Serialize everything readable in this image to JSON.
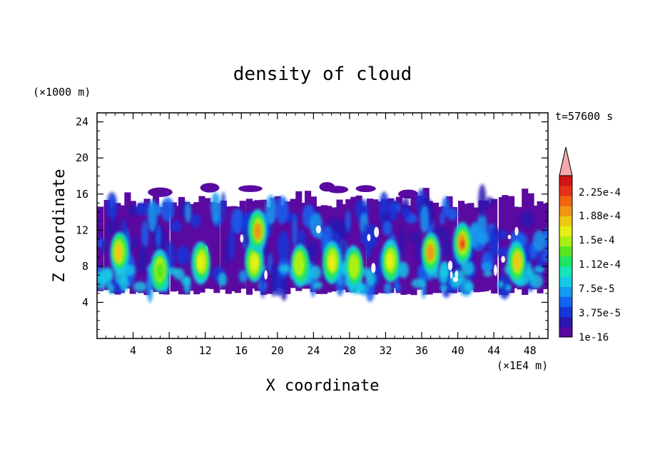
{
  "chart_data": {
    "type": "heatmap",
    "title": "density of cloud",
    "xlabel": "X coordinate",
    "ylabel": "Z coordinate",
    "x_unit": "(×1E4 m)",
    "y_unit": "(×1000 m)",
    "time_label": "t=57600 s",
    "xlim": [
      0,
      50
    ],
    "ylim": [
      0,
      25
    ],
    "x_ticks": [
      "4",
      "8",
      "12",
      "16",
      "20",
      "24",
      "28",
      "32",
      "36",
      "40",
      "44",
      "48"
    ],
    "y_ticks": [
      "4",
      "8",
      "12",
      "16",
      "20",
      "24"
    ],
    "colorbar": {
      "labels": [
        "2.25e-4",
        "1.88e-4",
        "1.5e-4",
        "1.12e-4",
        "7.5e-5",
        "3.75e-5",
        "1e-16"
      ],
      "colors": [
        "#5a0aa0",
        "#2a16b0",
        "#1436d8",
        "#1464f0",
        "#149af0",
        "#14cae6",
        "#14e6b4",
        "#1ee664",
        "#5ae61e",
        "#aaf014",
        "#e6f014",
        "#f0c814",
        "#f09614",
        "#f06414",
        "#e63214",
        "#d21414"
      ],
      "overflow_color": "#f4a8a8"
    },
    "cloud_layer": {
      "z_bottom": 4.8,
      "z_top": 16.3
    },
    "cells": [
      {
        "x": 2.4,
        "z": 9.5,
        "level": 11
      },
      {
        "x": 7.0,
        "z": 7.5,
        "level": 8
      },
      {
        "x": 11.5,
        "z": 8.5,
        "level": 10
      },
      {
        "x": 17.5,
        "z": 8.5,
        "level": 10
      },
      {
        "x": 17.8,
        "z": 12.0,
        "level": 12
      },
      {
        "x": 22.5,
        "z": 8.2,
        "level": 9
      },
      {
        "x": 26.0,
        "z": 8.5,
        "level": 10
      },
      {
        "x": 28.5,
        "z": 8.0,
        "level": 9
      },
      {
        "x": 32.5,
        "z": 8.5,
        "level": 10
      },
      {
        "x": 37.0,
        "z": 9.5,
        "level": 12
      },
      {
        "x": 40.5,
        "z": 10.5,
        "level": 14
      },
      {
        "x": 46.5,
        "z": 8.5,
        "level": 11
      }
    ]
  }
}
